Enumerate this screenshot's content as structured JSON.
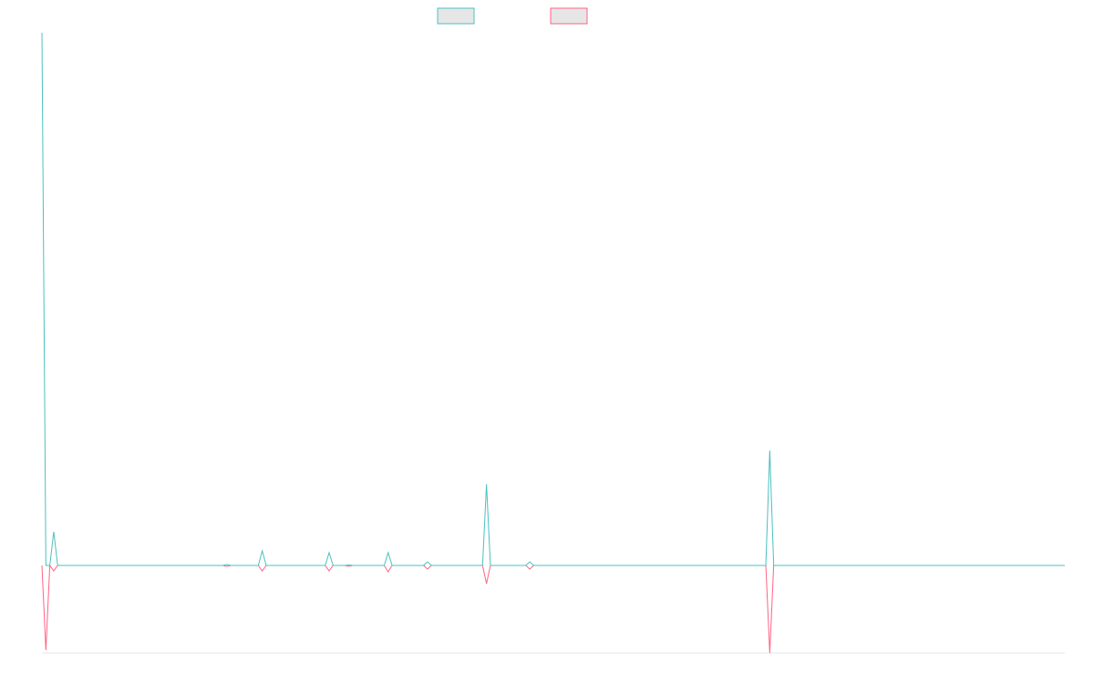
{
  "chart_data": {
    "type": "line",
    "x": [
      0,
      1,
      2,
      3,
      4,
      46,
      47,
      48,
      55,
      56,
      57,
      72,
      73,
      74,
      77,
      78,
      79,
      87,
      88,
      89,
      97,
      98,
      99,
      112,
      113,
      114,
      123,
      124,
      125,
      184,
      185,
      186,
      260
    ],
    "xlim": [
      0,
      260
    ],
    "ylim": [
      -96,
      584
    ],
    "series": [
      {
        "color": "#4bc0c0",
        "values": [
          584,
          0,
          0,
          37,
          0,
          0,
          1,
          0,
          0,
          16,
          0,
          0,
          14,
          0,
          0,
          0.5,
          0,
          0,
          14,
          0,
          0,
          4,
          0,
          0,
          89,
          0,
          0,
          4,
          0,
          0,
          126,
          0,
          0
        ]
      },
      {
        "color": "#ff6384",
        "values": [
          0,
          -93,
          0,
          -6,
          0,
          0,
          -1,
          0,
          0,
          -6,
          0,
          0,
          -6,
          0,
          0,
          -1,
          0,
          0,
          -7,
          0,
          0,
          -4,
          0,
          0,
          -20,
          0,
          0,
          -4,
          0,
          0,
          -96,
          0,
          0
        ]
      }
    ]
  }
}
